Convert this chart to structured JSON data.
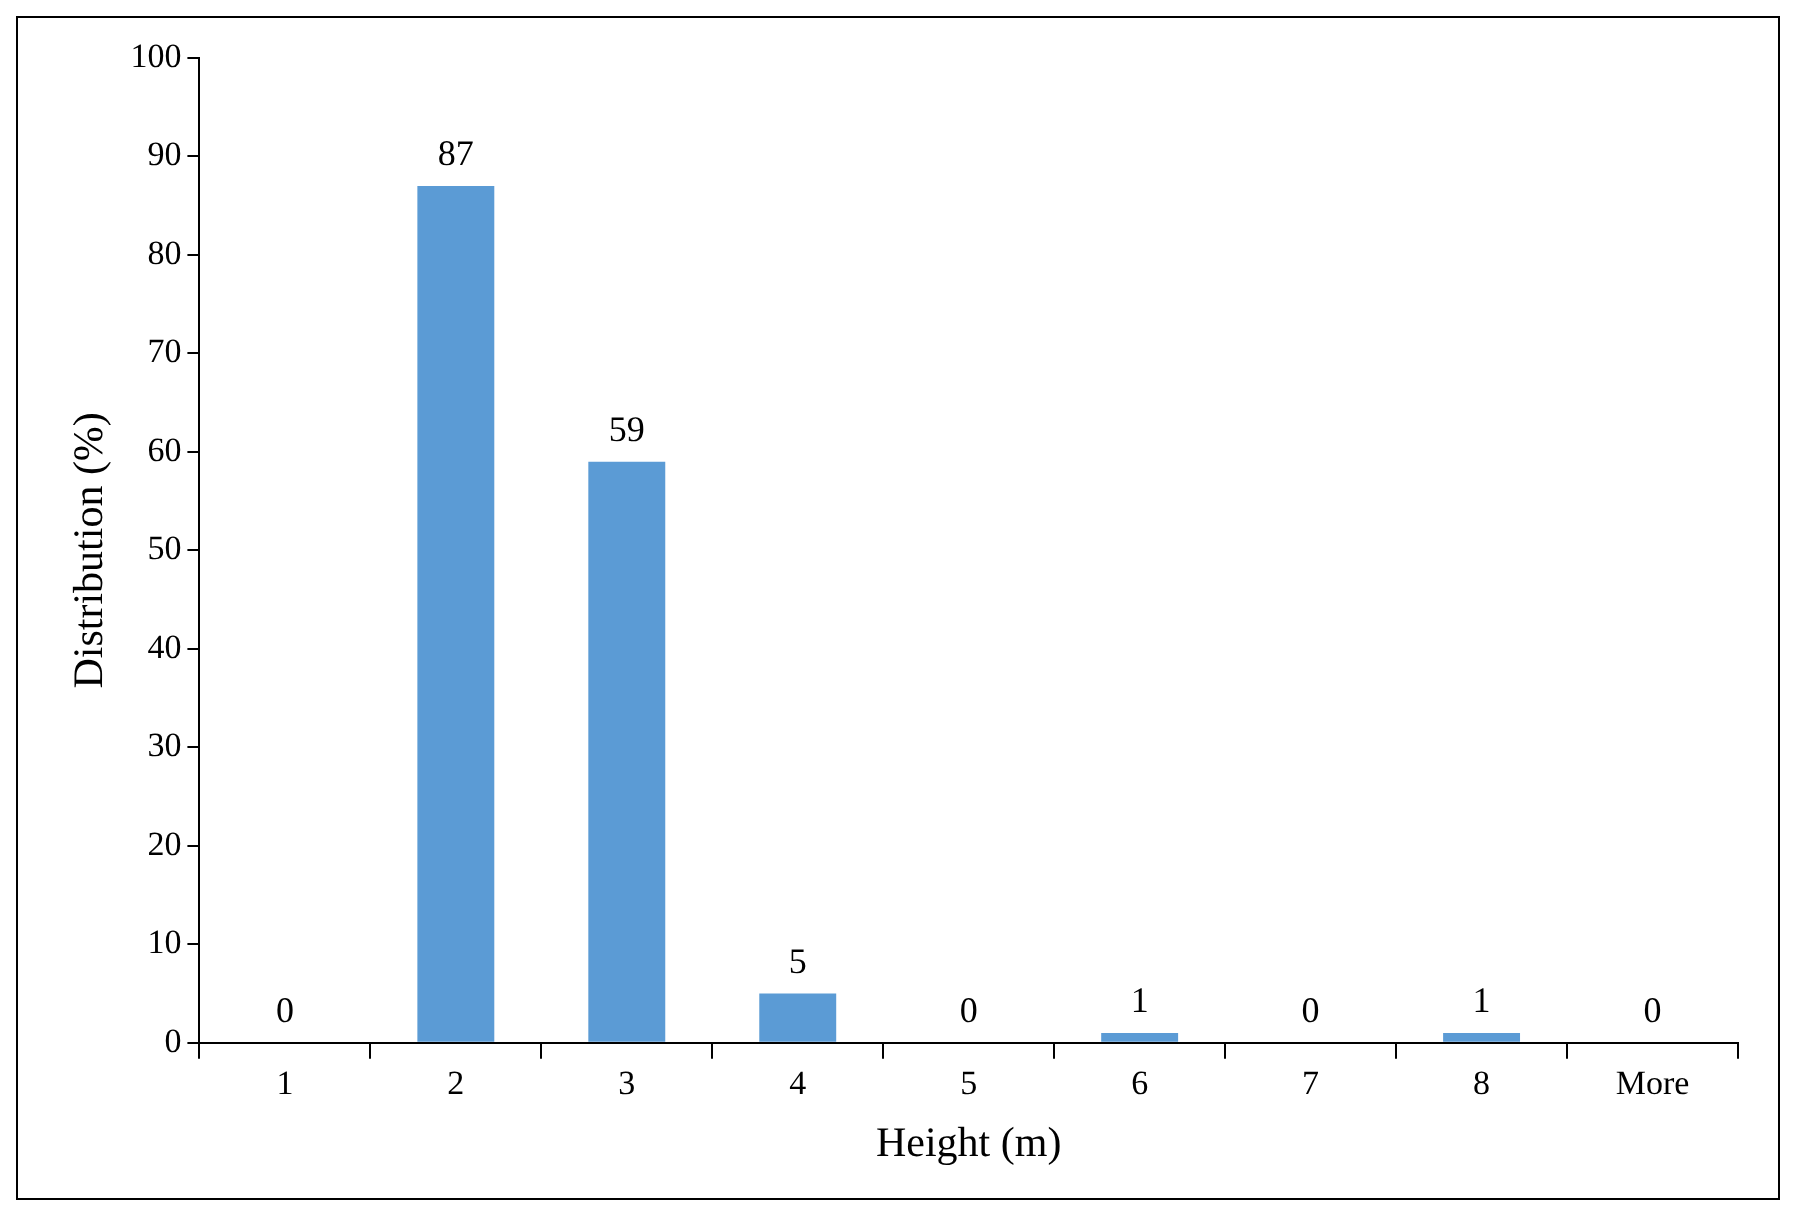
{
  "chart_data": {
    "type": "bar",
    "xlabel": "Height (m)",
    "ylabel": "Distribution (%)",
    "categories": [
      "1",
      "2",
      "3",
      "4",
      "5",
      "6",
      "7",
      "8",
      "More"
    ],
    "values": [
      0,
      87,
      59,
      5,
      0,
      1,
      0,
      1,
      0
    ],
    "color": "#5b9bd5",
    "ylim": [
      0,
      100
    ],
    "yticks": [
      0,
      10,
      20,
      30,
      40,
      50,
      60,
      70,
      80,
      90,
      100
    ],
    "grid": false,
    "legend": false,
    "data_labels": true
  }
}
